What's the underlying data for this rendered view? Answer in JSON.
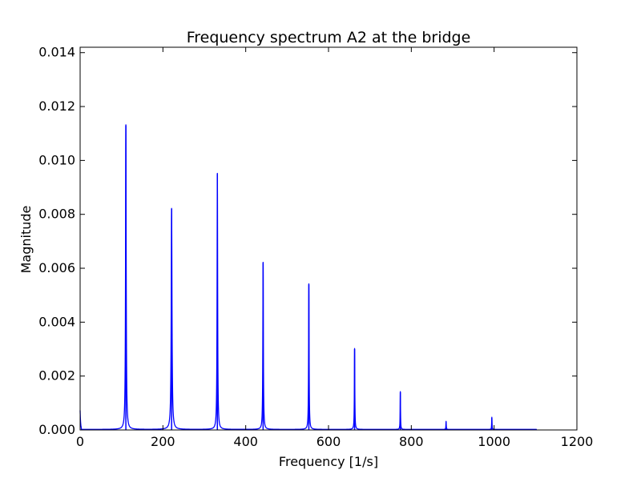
{
  "chart_data": {
    "type": "line",
    "title": "Frequency spectrum A2 at the bridge",
    "xlabel": "Frequency [1/s]",
    "ylabel": "Magnitude",
    "xlim": [
      0,
      1200
    ],
    "ylim": [
      0,
      0.0142
    ],
    "xticks": [
      0,
      200,
      400,
      600,
      800,
      1000,
      1200
    ],
    "yticks": [
      0.0,
      0.002,
      0.004,
      0.006,
      0.008,
      0.01,
      0.012,
      0.014
    ],
    "xtick_labels": [
      "0",
      "200",
      "400",
      "600",
      "800",
      "1000",
      "1200"
    ],
    "ytick_labels": [
      "0.000",
      "0.002",
      "0.004",
      "0.006",
      "0.008",
      "0.010",
      "0.012",
      "0.014"
    ],
    "line_color": "#0000ff",
    "x_data_range": [
      0,
      1102
    ],
    "peaks": [
      {
        "x": 110.5,
        "y": 0.0113
      },
      {
        "x": 221,
        "y": 0.0082
      },
      {
        "x": 331.5,
        "y": 0.0095
      },
      {
        "x": 442,
        "y": 0.0062
      },
      {
        "x": 552.5,
        "y": 0.0054
      },
      {
        "x": 663,
        "y": 0.003
      },
      {
        "x": 773.5,
        "y": 0.0014
      },
      {
        "x": 884,
        "y": 0.0003
      },
      {
        "x": 994.5,
        "y": 0.00045
      }
    ],
    "grid": false,
    "legend": false
  }
}
